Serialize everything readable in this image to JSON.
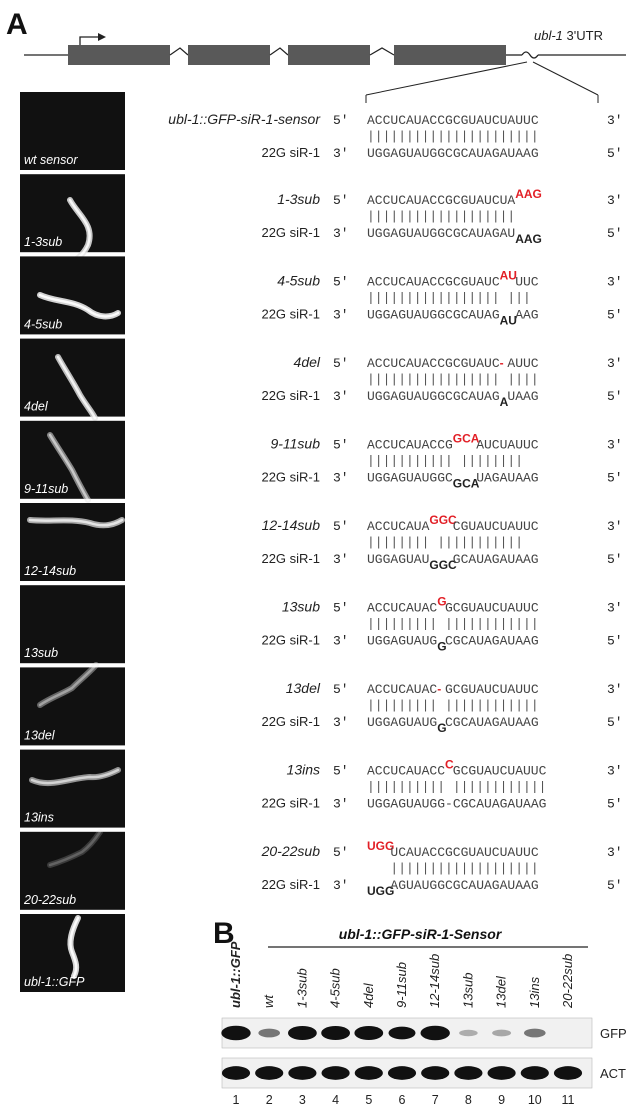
{
  "panel_a": {
    "letter": "A",
    "gene_label_italic": "ubl-1",
    "gene_label_rest": " 3'UTR",
    "sensor_label": "ubl-1::GFP-siR-1-sensor",
    "sirna_label": "22G siR-1",
    "prime5": "5′",
    "prime3": "3′",
    "sensor_seq": "ACCUCAUACCGCGUAUCUAUUC",
    "sensor_bars": "||||||||||||||||||||||",
    "sirna_seq": "UGGAGUAUGGCGCAUAGAUAAG",
    "images": [
      {
        "label": "wt sensor",
        "italic": false
      },
      {
        "label": "1-3sub",
        "italic": true
      },
      {
        "label": "4-5sub",
        "italic": true
      },
      {
        "label": "4del",
        "italic": true
      },
      {
        "label": "9-11sub",
        "italic": true
      },
      {
        "label": "12-14sub",
        "italic": true
      },
      {
        "label": "13sub",
        "italic": true
      },
      {
        "label": "13del",
        "italic": true
      },
      {
        "label": "13ins",
        "italic": true
      },
      {
        "label": "20-22sub",
        "italic": true
      },
      {
        "label": "ubl-1::GFP",
        "italic": true
      }
    ],
    "mutants": [
      {
        "name": "1-3sub",
        "top_seq": "ACCUCAUACCGCGUAUCUA",
        "top_red": "AAG",
        "bars": "|||||||||||||||||||",
        "bot_seq": "UGGAGUAUGGCGCAUAGAU",
        "bot_black": "AAG"
      },
      {
        "name": "4-5sub",
        "top_seq": "ACCUCAUACCGCGUAUC",
        "top_red": "AU",
        "top_tail": "UUC",
        "bars": "|||||||||||||||||  |||",
        "bot_seq": "UGGAGUAUGGCGCAUAG",
        "bot_black": "AU",
        "bot_tail": "AAG"
      },
      {
        "name": "4del",
        "top_seq": "ACCUCAUACCGCGUAUC",
        "top_red": "-",
        "top_tail": "AUUC",
        "bars": "||||||||||||||||| ||||",
        "bot_seq": "UGGAGUAUGGCGCAUAG",
        "bot_black": "A",
        "bot_tail": "UAAG"
      },
      {
        "name": "9-11sub",
        "top_seq": "ACCUCAUACCG",
        "top_red": "GCA",
        "top_tail": "AUCUAUUC",
        "bars": "|||||||||||   ||||||||",
        "bot_seq": "UGGAGUAUGGC",
        "bot_black": "GCA",
        "bot_tail": "UAGAUAAG"
      },
      {
        "name": "12-14sub",
        "top_seq": "ACCUCAUA",
        "top_red": "GGC",
        "top_tail": "CGUAUCUAUUC",
        "bars": "||||||||   |||||||||||",
        "bot_seq": "UGGAGUAU",
        "bot_black": "GGC",
        "bot_tail": "GCAUAGAUAAG"
      },
      {
        "name": "13sub",
        "top_seq": "ACCUCAUAC",
        "top_red": "G",
        "top_tail": "GCGUAUCUAUUC",
        "bars": "||||||||| ||||||||||||",
        "bot_seq": "UGGAGUAUG",
        "bot_black": "G",
        "bot_tail": "CGCAUAGAUAAG"
      },
      {
        "name": "13del",
        "top_seq": "ACCUCAUAC",
        "top_red": "-",
        "top_tail": "GCGUAUCUAUUC",
        "bars": "||||||||| ||||||||||||",
        "bot_seq": "UGGAGUAUG",
        "bot_black": "G",
        "bot_tail": "CGCAUAGAUAAG"
      },
      {
        "name": "13ins",
        "top_seq": "ACCUCAUACC",
        "top_red": "C",
        "top_tail": "GCGUAUCUAUUC",
        "bars": "|||||||||| ||||||||||||",
        "bot_seq": "UGGAGUAUGG-CGCAUAGAUAAG"
      },
      {
        "name": "20-22sub",
        "top_red": "UGG",
        "top_tail": "UCAUACCGCGUAUCUAUUC",
        "bars": "|||||||||||||||||||",
        "bot_black": "UGG",
        "bot_tail": "AGUAUGGCGCAUAGAUAAG"
      }
    ]
  },
  "panel_b": {
    "letter": "B",
    "header": "ubl-1::GFP-siR-1-Sensor",
    "lanes": [
      "ubl-1::GFP",
      "wt",
      "1-3sub",
      "4-5sub",
      "4del",
      "9-11sub",
      "12-14sub",
      "13sub",
      "13del",
      "13ins",
      "20-22sub"
    ],
    "lane_numbers": [
      "1",
      "2",
      "3",
      "4",
      "5",
      "6",
      "7",
      "8",
      "9",
      "10",
      "11"
    ],
    "blots": [
      "GFP",
      "ACT"
    ],
    "gfp_intensity": [
      0.95,
      0.3,
      0.9,
      0.9,
      0.9,
      0.75,
      0.95,
      0.05,
      0.08,
      0.3,
      0.0
    ],
    "act_intensity": [
      0.85,
      0.85,
      0.85,
      0.85,
      0.85,
      0.85,
      0.85,
      0.85,
      0.85,
      0.85,
      0.85
    ]
  }
}
